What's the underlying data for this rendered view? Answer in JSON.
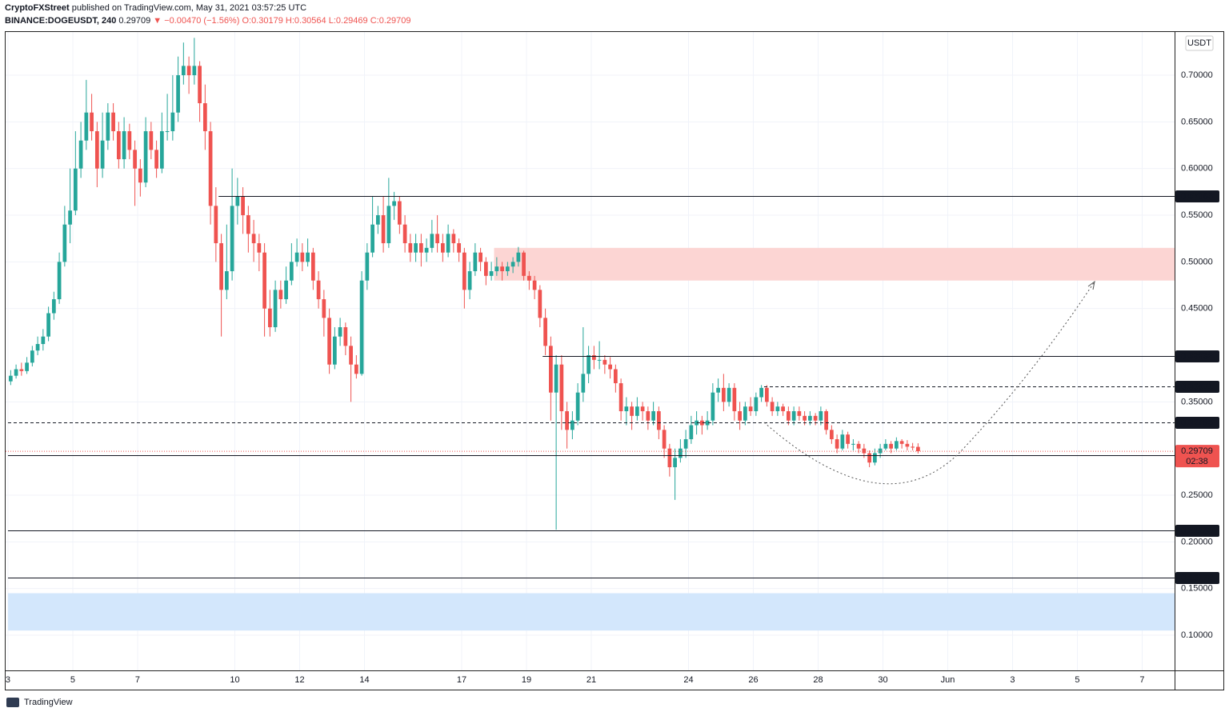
{
  "header": {
    "author": "CryptoFXStreet",
    "published": "published on TradingView.com, May 31, 2021 03:57:25 UTC",
    "symbol": "BINANCE:DOGEUSDT, 240",
    "last": "0.29709",
    "change": "▼ −0.00470 (−1.56%)",
    "open": "O:0.30179",
    "high": "H:0.30564",
    "low": "L:0.29469",
    "close": "C:0.29709"
  },
  "footer": {
    "brand": "TradingView"
  },
  "chart_data": {
    "type": "candlestick",
    "currency": "USDT",
    "up_color": "#26a69a",
    "down_color": "#ef5350",
    "ylim": [
      0.0623,
      0.7463
    ],
    "xlim": [
      -0.44,
      216
    ],
    "yticks": [
      {
        "value": 0.7,
        "label": "0.70000"
      },
      {
        "value": 0.65,
        "label": "0.65000"
      },
      {
        "value": 0.6,
        "label": "0.60000"
      },
      {
        "value": 0.55,
        "label": "0.55000"
      },
      {
        "value": 0.5,
        "label": "0.50000"
      },
      {
        "value": 0.45,
        "label": "0.45000"
      },
      {
        "value": 0.35,
        "label": "0.35000"
      },
      {
        "value": 0.25,
        "label": "0.25000"
      },
      {
        "value": 0.2,
        "label": "0.20000"
      },
      {
        "value": 0.15,
        "label": "0.15000"
      },
      {
        "value": 0.1,
        "label": "0.10000"
      }
    ],
    "xticks": [
      {
        "value": 0,
        "label": "3"
      },
      {
        "value": 12,
        "label": "5"
      },
      {
        "value": 24,
        "label": "7"
      },
      {
        "value": 42,
        "label": "10"
      },
      {
        "value": 54,
        "label": "12"
      },
      {
        "value": 66,
        "label": "14"
      },
      {
        "value": 84,
        "label": "17"
      },
      {
        "value": 96,
        "label": "19"
      },
      {
        "value": 108,
        "label": "21"
      },
      {
        "value": 126,
        "label": "24"
      },
      {
        "value": 138,
        "label": "26"
      },
      {
        "value": 150,
        "label": "28"
      },
      {
        "value": 162,
        "label": "30"
      },
      {
        "value": 174,
        "label": "Jun"
      },
      {
        "value": 186,
        "label": "3"
      },
      {
        "value": 198,
        "label": "5"
      },
      {
        "value": 210,
        "label": "7"
      }
    ],
    "grid": true,
    "levels": [
      {
        "value": 0.57063,
        "from": 39,
        "style": "solid"
      },
      {
        "value": 0.39932,
        "from": 99,
        "style": "solid"
      },
      {
        "value": 0.36671,
        "from": 140,
        "style": "dashed"
      },
      {
        "value": 0.32785,
        "from": 0,
        "style": "dashed"
      },
      {
        "value": 0.29254,
        "from": 0,
        "style": "solid"
      },
      {
        "value": 0.21269,
        "from": 0,
        "style": "solid"
      },
      {
        "value": 0.16172,
        "from": 0,
        "style": "solid"
      }
    ],
    "zones": [
      {
        "low": 0.48,
        "high": 0.515,
        "from": 90,
        "color": "#fcd5d3"
      },
      {
        "low": 0.105,
        "high": 0.145,
        "from": 0,
        "color": "#d3e7fc"
      }
    ],
    "last_price": 0.29709,
    "countdown": "02:38",
    "candles": [
      [
        0.372,
        0.384,
        0.368,
        0.378
      ],
      [
        0.378,
        0.39,
        0.375,
        0.385
      ],
      [
        0.385,
        0.392,
        0.378,
        0.383
      ],
      [
        0.383,
        0.398,
        0.38,
        0.392
      ],
      [
        0.392,
        0.41,
        0.388,
        0.405
      ],
      [
        0.405,
        0.42,
        0.4,
        0.412
      ],
      [
        0.412,
        0.428,
        0.405,
        0.42
      ],
      [
        0.42,
        0.452,
        0.415,
        0.445
      ],
      [
        0.445,
        0.468,
        0.438,
        0.46
      ],
      [
        0.46,
        0.51,
        0.455,
        0.5
      ],
      [
        0.5,
        0.56,
        0.495,
        0.54
      ],
      [
        0.54,
        0.6,
        0.52,
        0.555
      ],
      [
        0.555,
        0.64,
        0.55,
        0.6
      ],
      [
        0.6,
        0.65,
        0.59,
        0.63
      ],
      [
        0.63,
        0.695,
        0.62,
        0.66
      ],
      [
        0.66,
        0.68,
        0.63,
        0.64
      ],
      [
        0.64,
        0.65,
        0.58,
        0.6
      ],
      [
        0.6,
        0.66,
        0.59,
        0.63
      ],
      [
        0.63,
        0.67,
        0.62,
        0.66
      ],
      [
        0.66,
        0.67,
        0.63,
        0.64
      ],
      [
        0.64,
        0.65,
        0.6,
        0.61
      ],
      [
        0.61,
        0.655,
        0.6,
        0.64
      ],
      [
        0.64,
        0.648,
        0.61,
        0.62
      ],
      [
        0.62,
        0.63,
        0.56,
        0.6
      ],
      [
        0.6,
        0.61,
        0.57,
        0.585
      ],
      [
        0.585,
        0.655,
        0.58,
        0.64
      ],
      [
        0.64,
        0.65,
        0.61,
        0.62
      ],
      [
        0.62,
        0.63,
        0.59,
        0.6
      ],
      [
        0.6,
        0.66,
        0.595,
        0.64
      ],
      [
        0.64,
        0.68,
        0.63,
        0.64
      ],
      [
        0.64,
        0.7,
        0.63,
        0.66
      ],
      [
        0.66,
        0.72,
        0.65,
        0.7
      ],
      [
        0.7,
        0.735,
        0.69,
        0.71
      ],
      [
        0.71,
        0.72,
        0.68,
        0.7
      ],
      [
        0.7,
        0.74,
        0.69,
        0.71
      ],
      [
        0.71,
        0.715,
        0.65,
        0.67
      ],
      [
        0.67,
        0.69,
        0.62,
        0.64
      ],
      [
        0.64,
        0.65,
        0.54,
        0.56
      ],
      [
        0.56,
        0.58,
        0.5,
        0.52
      ],
      [
        0.52,
        0.53,
        0.42,
        0.47
      ],
      [
        0.47,
        0.54,
        0.46,
        0.49
      ],
      [
        0.49,
        0.6,
        0.48,
        0.56
      ],
      [
        0.56,
        0.59,
        0.54,
        0.57
      ],
      [
        0.57,
        0.58,
        0.53,
        0.55
      ],
      [
        0.55,
        0.56,
        0.51,
        0.53
      ],
      [
        0.53,
        0.545,
        0.5,
        0.52
      ],
      [
        0.52,
        0.53,
        0.49,
        0.51
      ],
      [
        0.51,
        0.52,
        0.42,
        0.45
      ],
      [
        0.45,
        0.47,
        0.42,
        0.43
      ],
      [
        0.43,
        0.48,
        0.425,
        0.47
      ],
      [
        0.47,
        0.48,
        0.45,
        0.46
      ],
      [
        0.46,
        0.495,
        0.455,
        0.48
      ],
      [
        0.48,
        0.52,
        0.475,
        0.5
      ],
      [
        0.5,
        0.525,
        0.495,
        0.51
      ],
      [
        0.51,
        0.52,
        0.49,
        0.5
      ],
      [
        0.5,
        0.525,
        0.495,
        0.51
      ],
      [
        0.51,
        0.515,
        0.47,
        0.48
      ],
      [
        0.48,
        0.49,
        0.45,
        0.46
      ],
      [
        0.46,
        0.47,
        0.42,
        0.44
      ],
      [
        0.44,
        0.45,
        0.38,
        0.39
      ],
      [
        0.39,
        0.43,
        0.385,
        0.42
      ],
      [
        0.42,
        0.44,
        0.41,
        0.43
      ],
      [
        0.43,
        0.435,
        0.4,
        0.41
      ],
      [
        0.41,
        0.42,
        0.35,
        0.39
      ],
      [
        0.39,
        0.4,
        0.375,
        0.38
      ],
      [
        0.38,
        0.49,
        0.378,
        0.48
      ],
      [
        0.48,
        0.52,
        0.47,
        0.51
      ],
      [
        0.51,
        0.57,
        0.505,
        0.54
      ],
      [
        0.54,
        0.56,
        0.53,
        0.55
      ],
      [
        0.55,
        0.57,
        0.51,
        0.52
      ],
      [
        0.52,
        0.59,
        0.515,
        0.56
      ],
      [
        0.56,
        0.575,
        0.545,
        0.565
      ],
      [
        0.565,
        0.57,
        0.53,
        0.54
      ],
      [
        0.54,
        0.55,
        0.51,
        0.52
      ],
      [
        0.52,
        0.53,
        0.5,
        0.51
      ],
      [
        0.51,
        0.53,
        0.5,
        0.52
      ],
      [
        0.52,
        0.53,
        0.495,
        0.51
      ],
      [
        0.51,
        0.525,
        0.5,
        0.515
      ],
      [
        0.515,
        0.545,
        0.51,
        0.53
      ],
      [
        0.53,
        0.55,
        0.51,
        0.52
      ],
      [
        0.52,
        0.53,
        0.5,
        0.51
      ],
      [
        0.51,
        0.54,
        0.505,
        0.53
      ],
      [
        0.53,
        0.535,
        0.51,
        0.52
      ],
      [
        0.52,
        0.525,
        0.5,
        0.51
      ],
      [
        0.51,
        0.515,
        0.45,
        0.47
      ],
      [
        0.47,
        0.5,
        0.46,
        0.49
      ],
      [
        0.49,
        0.52,
        0.485,
        0.51
      ],
      [
        0.51,
        0.515,
        0.49,
        0.5
      ],
      [
        0.5,
        0.505,
        0.475,
        0.485
      ],
      [
        0.485,
        0.5,
        0.48,
        0.49
      ],
      [
        0.49,
        0.505,
        0.485,
        0.495
      ],
      [
        0.495,
        0.5,
        0.48,
        0.49
      ],
      [
        0.49,
        0.5,
        0.485,
        0.495
      ],
      [
        0.495,
        0.505,
        0.488,
        0.5
      ],
      [
        0.5,
        0.516,
        0.495,
        0.51
      ],
      [
        0.51,
        0.512,
        0.48,
        0.485
      ],
      [
        0.485,
        0.49,
        0.47,
        0.48
      ],
      [
        0.48,
        0.485,
        0.46,
        0.47
      ],
      [
        0.47,
        0.475,
        0.43,
        0.44
      ],
      [
        0.44,
        0.45,
        0.4,
        0.41
      ],
      [
        0.41,
        0.42,
        0.33,
        0.36
      ],
      [
        0.36,
        0.4,
        0.213,
        0.39
      ],
      [
        0.39,
        0.4,
        0.32,
        0.34
      ],
      [
        0.34,
        0.35,
        0.3,
        0.32
      ],
      [
        0.32,
        0.34,
        0.31,
        0.33
      ],
      [
        0.33,
        0.37,
        0.325,
        0.36
      ],
      [
        0.36,
        0.43,
        0.35,
        0.38
      ],
      [
        0.38,
        0.41,
        0.37,
        0.4
      ],
      [
        0.4,
        0.41,
        0.385,
        0.395
      ],
      [
        0.395,
        0.415,
        0.385,
        0.395
      ],
      [
        0.395,
        0.4,
        0.38,
        0.39
      ],
      [
        0.39,
        0.398,
        0.375,
        0.385
      ],
      [
        0.385,
        0.39,
        0.36,
        0.37
      ],
      [
        0.37,
        0.375,
        0.33,
        0.34
      ],
      [
        0.34,
        0.355,
        0.325,
        0.345
      ],
      [
        0.345,
        0.35,
        0.32,
        0.335
      ],
      [
        0.335,
        0.355,
        0.33,
        0.345
      ],
      [
        0.345,
        0.35,
        0.33,
        0.34
      ],
      [
        0.34,
        0.345,
        0.32,
        0.33
      ],
      [
        0.33,
        0.35,
        0.325,
        0.34
      ],
      [
        0.34,
        0.345,
        0.31,
        0.32
      ],
      [
        0.32,
        0.325,
        0.29,
        0.3
      ],
      [
        0.3,
        0.305,
        0.27,
        0.28
      ],
      [
        0.28,
        0.3,
        0.245,
        0.29
      ],
      [
        0.29,
        0.31,
        0.285,
        0.3
      ],
      [
        0.3,
        0.32,
        0.29,
        0.31
      ],
      [
        0.31,
        0.335,
        0.305,
        0.325
      ],
      [
        0.325,
        0.34,
        0.315,
        0.33
      ],
      [
        0.33,
        0.335,
        0.315,
        0.325
      ],
      [
        0.325,
        0.34,
        0.32,
        0.33
      ],
      [
        0.33,
        0.37,
        0.325,
        0.36
      ],
      [
        0.36,
        0.375,
        0.35,
        0.365
      ],
      [
        0.365,
        0.38,
        0.34,
        0.35
      ],
      [
        0.35,
        0.37,
        0.345,
        0.365
      ],
      [
        0.365,
        0.37,
        0.33,
        0.34
      ],
      [
        0.34,
        0.35,
        0.32,
        0.33
      ],
      [
        0.33,
        0.35,
        0.325,
        0.345
      ],
      [
        0.345,
        0.355,
        0.335,
        0.34
      ],
      [
        0.34,
        0.36,
        0.335,
        0.355
      ],
      [
        0.355,
        0.368,
        0.35,
        0.365
      ],
      [
        0.365,
        0.368,
        0.345,
        0.35
      ],
      [
        0.35,
        0.355,
        0.335,
        0.34
      ],
      [
        0.34,
        0.35,
        0.335,
        0.345
      ],
      [
        0.345,
        0.348,
        0.335,
        0.34
      ],
      [
        0.34,
        0.345,
        0.325,
        0.33
      ],
      [
        0.33,
        0.345,
        0.325,
        0.34
      ],
      [
        0.34,
        0.345,
        0.33,
        0.335
      ],
      [
        0.335,
        0.34,
        0.325,
        0.33
      ],
      [
        0.33,
        0.34,
        0.325,
        0.335
      ],
      [
        0.335,
        0.338,
        0.325,
        0.33
      ],
      [
        0.33,
        0.345,
        0.325,
        0.34
      ],
      [
        0.34,
        0.342,
        0.315,
        0.32
      ],
      [
        0.32,
        0.325,
        0.305,
        0.31
      ],
      [
        0.31,
        0.315,
        0.295,
        0.3
      ],
      [
        0.3,
        0.32,
        0.298,
        0.315
      ],
      [
        0.315,
        0.318,
        0.3,
        0.305
      ],
      [
        0.305,
        0.31,
        0.298,
        0.305
      ],
      [
        0.305,
        0.308,
        0.295,
        0.3
      ],
      [
        0.3,
        0.305,
        0.29,
        0.295
      ],
      [
        0.295,
        0.298,
        0.28,
        0.285
      ],
      [
        0.285,
        0.3,
        0.282,
        0.295
      ],
      [
        0.295,
        0.305,
        0.29,
        0.3
      ],
      [
        0.3,
        0.31,
        0.298,
        0.305
      ],
      [
        0.305,
        0.308,
        0.295,
        0.3
      ],
      [
        0.3,
        0.312,
        0.298,
        0.308
      ],
      [
        0.308,
        0.31,
        0.3,
        0.305
      ],
      [
        0.305,
        0.309,
        0.298,
        0.302
      ],
      [
        0.302,
        0.306,
        0.298,
        0.301
      ],
      [
        0.30179,
        0.30564,
        0.29469,
        0.29709
      ]
    ]
  }
}
